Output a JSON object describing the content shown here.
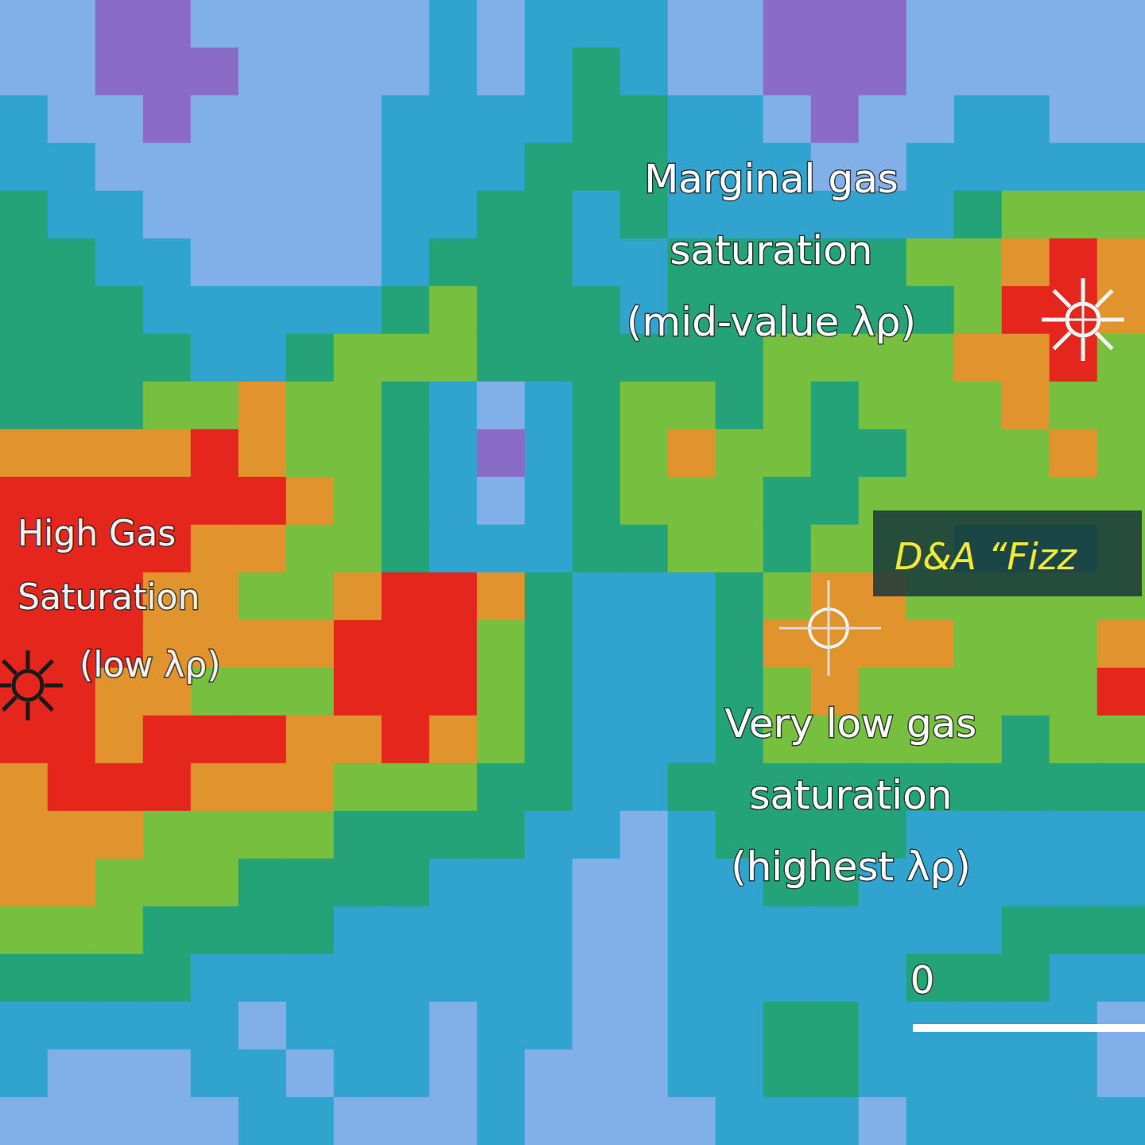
{
  "chart_data": {
    "type": "heatmap",
    "value_range": [
      0,
      6
    ],
    "cells": [
      [
        5,
        5,
        6,
        6,
        5,
        5,
        5,
        5,
        5,
        4,
        5,
        4,
        4,
        4,
        5,
        5,
        6,
        6,
        6,
        5,
        5,
        5,
        5,
        5
      ],
      [
        5,
        5,
        6,
        6,
        6,
        5,
        5,
        5,
        5,
        4,
        5,
        4,
        3,
        4,
        5,
        5,
        6,
        6,
        6,
        5,
        5,
        5,
        5,
        5
      ],
      [
        4,
        5,
        5,
        6,
        5,
        5,
        5,
        5,
        4,
        4,
        4,
        4,
        3,
        3,
        4,
        4,
        5,
        6,
        5,
        5,
        4,
        4,
        5,
        5
      ],
      [
        4,
        4,
        5,
        5,
        5,
        5,
        5,
        5,
        4,
        4,
        4,
        3,
        3,
        3,
        4,
        4,
        4,
        5,
        5,
        4,
        4,
        4,
        4,
        4
      ],
      [
        3,
        4,
        4,
        5,
        5,
        5,
        5,
        5,
        4,
        4,
        3,
        3,
        4,
        3,
        4,
        4,
        4,
        4,
        4,
        4,
        3,
        2,
        2,
        2
      ],
      [
        3,
        3,
        4,
        4,
        5,
        5,
        5,
        5,
        4,
        3,
        3,
        3,
        4,
        4,
        3,
        3,
        3,
        3,
        3,
        2,
        2,
        1,
        0,
        1
      ],
      [
        3,
        3,
        3,
        4,
        4,
        4,
        4,
        4,
        3,
        2,
        3,
        3,
        3,
        4,
        3,
        3,
        3,
        3,
        3,
        3,
        2,
        0,
        0,
        1
      ],
      [
        3,
        3,
        3,
        3,
        4,
        4,
        3,
        2,
        2,
        2,
        3,
        3,
        3,
        3,
        3,
        3,
        2,
        2,
        2,
        2,
        1,
        1,
        0,
        2
      ],
      [
        3,
        3,
        3,
        2,
        2,
        1,
        2,
        2,
        3,
        4,
        5,
        4,
        3,
        2,
        2,
        3,
        2,
        3,
        2,
        2,
        2,
        1,
        2,
        2
      ],
      [
        1,
        1,
        1,
        1,
        0,
        1,
        2,
        2,
        3,
        4,
        6,
        4,
        3,
        2,
        1,
        2,
        2,
        3,
        3,
        2,
        2,
        2,
        1,
        2
      ],
      [
        0,
        0,
        0,
        0,
        0,
        0,
        1,
        2,
        3,
        4,
        5,
        4,
        3,
        2,
        2,
        2,
        3,
        3,
        2,
        2,
        2,
        2,
        2,
        2
      ],
      [
        0,
        0,
        0,
        0,
        1,
        1,
        2,
        2,
        3,
        4,
        4,
        4,
        3,
        3,
        2,
        2,
        3,
        2,
        2,
        2,
        3,
        3,
        3,
        2
      ],
      [
        0,
        0,
        0,
        1,
        1,
        2,
        2,
        1,
        0,
        0,
        1,
        3,
        4,
        4,
        4,
        3,
        2,
        1,
        1,
        2,
        2,
        2,
        2,
        2
      ],
      [
        0,
        0,
        0,
        1,
        1,
        1,
        1,
        0,
        0,
        0,
        2,
        3,
        4,
        4,
        4,
        3,
        1,
        1,
        1,
        1,
        2,
        2,
        2,
        1
      ],
      [
        0,
        0,
        1,
        1,
        2,
        2,
        2,
        0,
        0,
        0,
        2,
        3,
        4,
        4,
        4,
        3,
        2,
        1,
        2,
        2,
        2,
        2,
        2,
        0
      ],
      [
        0,
        0,
        1,
        0,
        0,
        0,
        1,
        1,
        0,
        1,
        2,
        3,
        4,
        4,
        4,
        3,
        2,
        2,
        2,
        2,
        2,
        3,
        2,
        2
      ],
      [
        1,
        0,
        0,
        0,
        1,
        1,
        1,
        2,
        2,
        2,
        3,
        3,
        4,
        4,
        3,
        3,
        3,
        3,
        3,
        3,
        3,
        3,
        3,
        3
      ],
      [
        1,
        1,
        1,
        2,
        2,
        2,
        2,
        3,
        3,
        3,
        3,
        4,
        4,
        5,
        4,
        3,
        3,
        3,
        3,
        4,
        4,
        4,
        4,
        4
      ],
      [
        1,
        1,
        2,
        2,
        2,
        3,
        3,
        3,
        3,
        4,
        4,
        4,
        5,
        5,
        4,
        4,
        3,
        3,
        4,
        4,
        4,
        4,
        4,
        4
      ],
      [
        2,
        2,
        2,
        3,
        3,
        3,
        3,
        4,
        4,
        4,
        4,
        4,
        5,
        5,
        4,
        4,
        4,
        4,
        4,
        4,
        4,
        3,
        3,
        3
      ],
      [
        3,
        3,
        3,
        3,
        4,
        4,
        4,
        4,
        4,
        4,
        4,
        4,
        5,
        5,
        4,
        4,
        4,
        4,
        4,
        3,
        3,
        3,
        4,
        4
      ],
      [
        4,
        4,
        4,
        4,
        4,
        5,
        4,
        4,
        4,
        5,
        4,
        4,
        5,
        5,
        4,
        4,
        3,
        3,
        4,
        4,
        4,
        4,
        4,
        5
      ],
      [
        4,
        5,
        5,
        5,
        4,
        4,
        5,
        4,
        4,
        5,
        4,
        5,
        5,
        5,
        4,
        4,
        3,
        3,
        4,
        4,
        4,
        4,
        4,
        5
      ],
      [
        5,
        5,
        5,
        5,
        5,
        4,
        4,
        5,
        5,
        5,
        4,
        5,
        5,
        5,
        5,
        4,
        4,
        4,
        5,
        4,
        4,
        4,
        4,
        4
      ]
    ],
    "annotations": [
      {
        "lines": [
          "Marginal gas",
          "saturation",
          "(mid-value λρ)"
        ]
      },
      {
        "lines": [
          "High Gas",
          "Saturation",
          "(low λρ)"
        ]
      },
      {
        "lines": [
          "Very low gas",
          "saturation",
          "(highest λρ)"
        ]
      },
      {
        "lines": [
          "D&A “Fizz"
        ]
      }
    ],
    "scale_bar_label": "0"
  }
}
